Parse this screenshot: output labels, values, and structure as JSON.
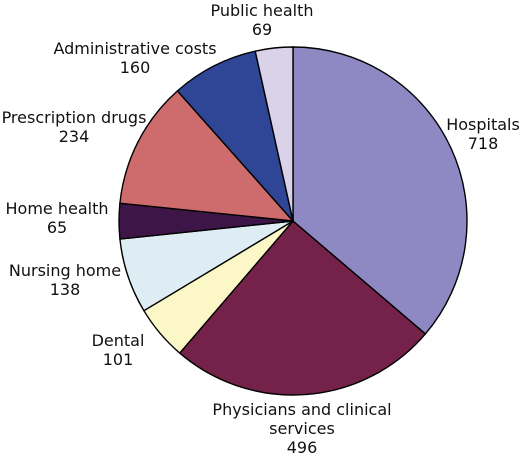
{
  "chart_data": {
    "type": "pie",
    "title": "",
    "start_angle_deg": 0,
    "direction": "clockwise",
    "slices": [
      {
        "label": "Hospitals",
        "label_lines": [
          "Hospitals",
          "718"
        ],
        "value": 718,
        "color": "#8f89c3"
      },
      {
        "label": "Physicians and clinical services",
        "label_lines": [
          "Physicians and clinical",
          "services",
          "496"
        ],
        "value": 496,
        "color": "#742249"
      },
      {
        "label": "Dental",
        "label_lines": [
          "Dental",
          "101"
        ],
        "value": 101,
        "color": "#fbf7c6"
      },
      {
        "label": "Nursing home",
        "label_lines": [
          "Nursing home",
          "138"
        ],
        "value": 138,
        "color": "#ddedf3"
      },
      {
        "label": "Home health",
        "label_lines": [
          "Home health",
          "65"
        ],
        "value": 65,
        "color": "#3d1546"
      },
      {
        "label": "Prescription drugs",
        "label_lines": [
          "Prescription drugs",
          "234"
        ],
        "value": 234,
        "color": "#cd6b6d"
      },
      {
        "label": "Administrative costs",
        "label_lines": [
          "Administrative costs",
          "160"
        ],
        "value": 160,
        "color": "#2f4595"
      },
      {
        "label": "Public health",
        "label_lines": [
          "Public health",
          "69"
        ],
        "value": 69,
        "color": "#d9d2e8"
      }
    ]
  }
}
